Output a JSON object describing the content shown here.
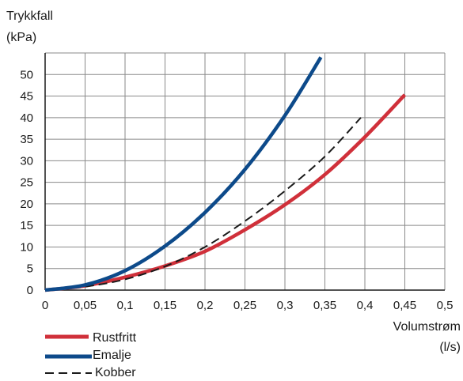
{
  "chart_data": {
    "type": "line",
    "ylabel": "Trykkfall",
    "ylabel_unit": "(kPa)",
    "xlabel": "Volumstrøm",
    "xlabel_unit": "(l/s)",
    "xlim": [
      0,
      0.5
    ],
    "ylim": [
      0,
      55
    ],
    "x_ticks": [
      "0",
      "0,05",
      "0,1",
      "0,15",
      "0,2",
      "0,25",
      "0,3",
      "0,35",
      "0,4",
      "0,45",
      "0,5"
    ],
    "y_ticks": [
      "0",
      "5",
      "10",
      "15",
      "20",
      "25",
      "30",
      "35",
      "40",
      "45",
      "50"
    ],
    "grid": true,
    "legend_position": "bottom-left",
    "series": [
      {
        "name": "Rustfritt",
        "color": "#d0303a",
        "style": "solid",
        "x": [
          0,
          0.05,
          0.1,
          0.15,
          0.2,
          0.25,
          0.3,
          0.35,
          0.4,
          0.45
        ],
        "y": [
          0,
          1,
          3,
          5.6,
          9,
          14,
          19.8,
          26.8,
          35.5,
          45.3
        ]
      },
      {
        "name": "Emalje",
        "color": "#0d4a8a",
        "style": "solid",
        "x": [
          0,
          0.05,
          0.1,
          0.15,
          0.2,
          0.25,
          0.3,
          0.345
        ],
        "y": [
          0,
          1.2,
          4.5,
          10.2,
          18,
          28,
          40.5,
          54
        ]
      },
      {
        "name": "Kobber",
        "color": "#1a1a1a",
        "style": "dashed",
        "x": [
          0,
          0.05,
          0.1,
          0.15,
          0.2,
          0.25,
          0.3,
          0.35,
          0.395
        ],
        "y": [
          0,
          0.8,
          2.5,
          5.5,
          10,
          16,
          23,
          31,
          40
        ]
      }
    ]
  }
}
